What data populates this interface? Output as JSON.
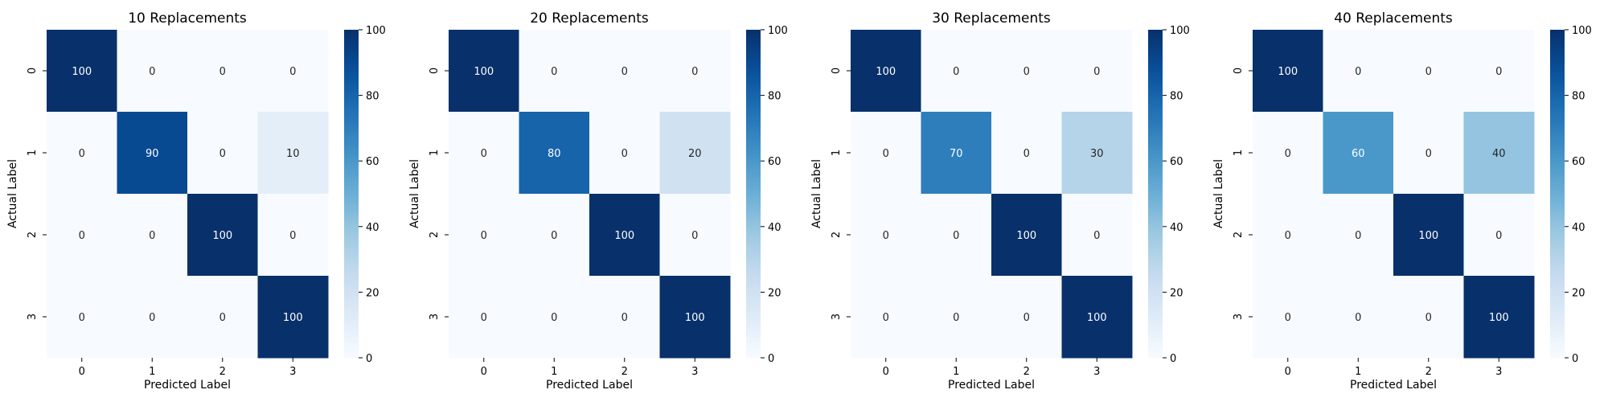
{
  "chart_data": [
    {
      "type": "heatmap",
      "title": "10 Replacements",
      "xlabel": "Predicted Label",
      "ylabel": "Actual Label",
      "x_categories": [
        "0",
        "1",
        "2",
        "3"
      ],
      "y_categories": [
        "0",
        "1",
        "2",
        "3"
      ],
      "values": [
        [
          100,
          0,
          0,
          0
        ],
        [
          0,
          90,
          0,
          10
        ],
        [
          0,
          0,
          100,
          0
        ],
        [
          0,
          0,
          0,
          100
        ]
      ],
      "colorbar": {
        "range": [
          0,
          100
        ],
        "ticks": [
          "0",
          "20",
          "40",
          "60",
          "80",
          "100"
        ],
        "colormap": "Blues"
      },
      "grid": false
    },
    {
      "type": "heatmap",
      "title": "20 Replacements",
      "xlabel": "Predicted Label",
      "ylabel": "Actual Label",
      "x_categories": [
        "0",
        "1",
        "2",
        "3"
      ],
      "y_categories": [
        "0",
        "1",
        "2",
        "3"
      ],
      "values": [
        [
          100,
          0,
          0,
          0
        ],
        [
          0,
          80,
          0,
          20
        ],
        [
          0,
          0,
          100,
          0
        ],
        [
          0,
          0,
          0,
          100
        ]
      ],
      "colorbar": {
        "range": [
          0,
          100
        ],
        "ticks": [
          "0",
          "20",
          "40",
          "60",
          "80",
          "100"
        ],
        "colormap": "Blues"
      },
      "grid": false
    },
    {
      "type": "heatmap",
      "title": "30 Replacements",
      "xlabel": "Predicted Label",
      "ylabel": "Actual Label",
      "x_categories": [
        "0",
        "1",
        "2",
        "3"
      ],
      "y_categories": [
        "0",
        "1",
        "2",
        "3"
      ],
      "values": [
        [
          100,
          0,
          0,
          0
        ],
        [
          0,
          70,
          0,
          30
        ],
        [
          0,
          0,
          100,
          0
        ],
        [
          0,
          0,
          0,
          100
        ]
      ],
      "colorbar": {
        "range": [
          0,
          100
        ],
        "ticks": [
          "0",
          "20",
          "40",
          "60",
          "80",
          "100"
        ],
        "colormap": "Blues"
      },
      "grid": false
    },
    {
      "type": "heatmap",
      "title": "40 Replacements",
      "xlabel": "Predicted Label",
      "ylabel": "Actual Label",
      "x_categories": [
        "0",
        "1",
        "2",
        "3"
      ],
      "y_categories": [
        "0",
        "1",
        "2",
        "3"
      ],
      "values": [
        [
          100,
          0,
          0,
          0
        ],
        [
          0,
          60,
          0,
          40
        ],
        [
          0,
          0,
          100,
          0
        ],
        [
          0,
          0,
          0,
          100
        ]
      ],
      "colorbar": {
        "range": [
          0,
          100
        ],
        "ticks": [
          "0",
          "20",
          "40",
          "60",
          "80",
          "100"
        ],
        "colormap": "Blues"
      },
      "grid": false
    }
  ]
}
